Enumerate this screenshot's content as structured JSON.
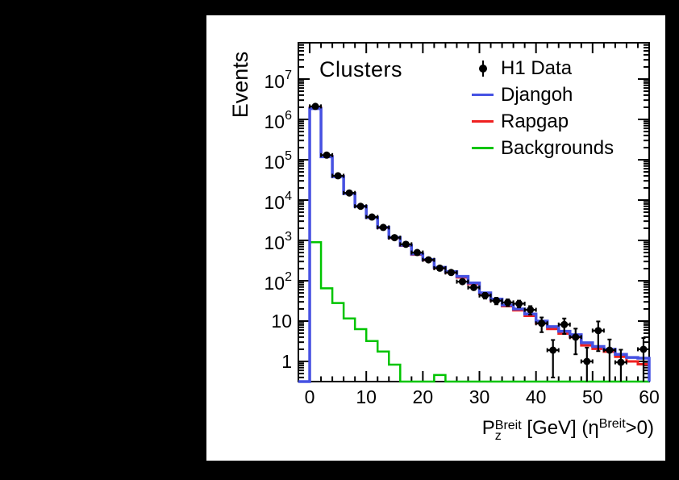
{
  "window": {
    "background_color": "#000000",
    "panel_background": "#ffffff"
  },
  "title": "Clusters",
  "y_axis_title": "Events",
  "x_axis_title": {
    "p": "P",
    "p_sup": "Breit",
    "p_sub": "z",
    "middle": " [GeV] (",
    "eta": "η",
    "eta_sup": "Breit",
    "suffix": ">0)"
  },
  "legend": {
    "items": [
      {
        "label": "H1 Data",
        "swatch": "marker",
        "color": "#000000"
      },
      {
        "label": "Djangoh",
        "swatch": "line",
        "color": "#4652e3"
      },
      {
        "label": "Rapgap",
        "swatch": "line",
        "color": "#ef2020"
      },
      {
        "label": "Backgrounds",
        "swatch": "line",
        "color": "#00c400"
      }
    ]
  },
  "chart_data": {
    "type": "histogram",
    "title": "Clusters",
    "xlabel": "Pz Breit [GeV] (eta Breit > 0)",
    "ylabel": "Events",
    "y_scale": "log",
    "xlim": [
      -2,
      60
    ],
    "ylim_log10": [
      -0.5,
      7.9
    ],
    "x_major_ticks": [
      0,
      10,
      20,
      30,
      40,
      50,
      60
    ],
    "x_tick_labels": [
      "0",
      "10",
      "20",
      "30",
      "40",
      "50",
      "60"
    ],
    "x_minor_step": 2,
    "y_major_exponents": [
      0,
      1,
      2,
      3,
      4,
      5,
      6,
      7
    ],
    "y_tick_labels": [
      {
        "base": "1",
        "exp": ""
      },
      {
        "base": "10",
        "exp": ""
      },
      {
        "base": "10",
        "exp": "2"
      },
      {
        "base": "10",
        "exp": "3"
      },
      {
        "base": "10",
        "exp": "4"
      },
      {
        "base": "10",
        "exp": "5"
      },
      {
        "base": "10",
        "exp": "6"
      },
      {
        "base": "10",
        "exp": "7"
      }
    ],
    "bin_start": 0,
    "bin_width": 2,
    "series": [
      {
        "name": "Backgrounds",
        "color": "#00c400",
        "line_width": 2.5,
        "values": [
          900,
          65,
          28,
          11.6,
          6.3,
          3.2,
          1.76,
          0.83,
          0,
          0,
          0,
          0.46,
          0,
          0,
          0,
          0,
          0,
          0,
          0,
          0,
          0,
          0,
          0,
          0,
          0,
          0,
          0,
          0,
          0,
          0
        ]
      },
      {
        "name": "Rapgap",
        "color": "#ef2020",
        "line_width": 3,
        "values": [
          1950000,
          122000,
          39000,
          14800,
          7000,
          3650,
          2050,
          1150,
          740,
          445,
          325,
          207,
          160,
          121,
          83,
          47,
          33,
          23.5,
          18.5,
          13.5,
          8.8,
          6.4,
          4.9,
          4.0,
          2.5,
          2.05,
          1.75,
          1.3,
          1.0,
          0.85
        ]
      },
      {
        "name": "Djangoh",
        "color": "#4652e3",
        "line_width": 3.5,
        "values": [
          1850000,
          118000,
          38000,
          14500,
          7000,
          3700,
          2100,
          1180,
          760,
          460,
          335,
          215,
          168,
          128,
          88,
          50,
          35,
          25,
          20,
          15,
          10,
          7.3,
          5.6,
          4.6,
          2.9,
          2.35,
          2.0,
          1.5,
          1.25,
          1.2
        ]
      }
    ],
    "data_points": {
      "name": "H1 Data",
      "color": "#000000",
      "x": [
        1,
        3,
        5,
        7,
        9,
        11,
        13,
        15,
        17,
        19,
        21,
        23,
        25,
        27,
        29,
        31,
        33,
        35,
        37,
        39,
        41,
        43,
        45,
        47,
        49,
        51,
        53,
        55,
        59
      ],
      "y": [
        2100000,
        130000,
        40000,
        15000,
        7000,
        3800,
        2100,
        1170,
        800,
        500,
        330,
        205,
        160,
        95,
        68,
        43,
        32,
        29,
        27,
        19,
        8.8,
        1.9,
        8.2,
        4.0,
        1.0,
        5.8,
        1.9,
        0.95,
        2.0
      ],
      "err": [
        1500,
        400,
        220,
        130,
        90,
        65,
        48,
        36,
        30,
        24,
        19,
        15,
        13,
        10,
        8.5,
        7,
        6,
        5.5,
        5.2,
        4.5,
        3.5,
        1.5,
        3.4,
        2.5,
        1.2,
        4.0,
        1.6,
        1.0,
        1.8
      ]
    }
  }
}
